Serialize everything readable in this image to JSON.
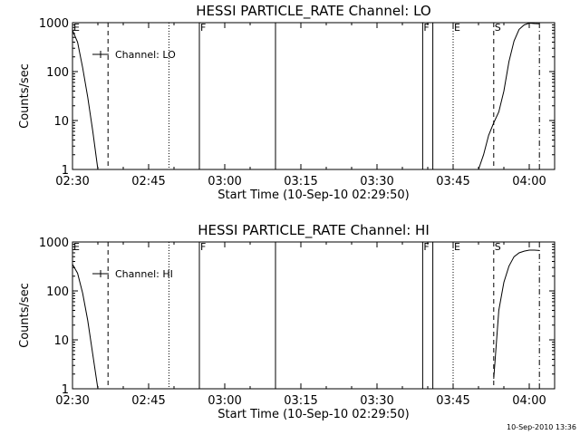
{
  "chart_data": [
    {
      "type": "line",
      "title": "HESSI PARTICLE_RATE Channel: LO",
      "xlabel": "Start Time (10-Sep-10 02:29:50)",
      "ylabel": "Counts/sec",
      "y_scale": "log",
      "ylim": [
        1,
        1000
      ],
      "xlim": [
        "02:30",
        "04:05"
      ],
      "yticks": [
        1,
        10,
        100,
        1000
      ],
      "ytick_labels": [
        "1",
        "10",
        "100",
        "1000"
      ],
      "xticks": [
        "02:30",
        "02:45",
        "03:00",
        "03:15",
        "03:30",
        "03:45",
        "04:00"
      ],
      "grid": false,
      "legend": {
        "label": "Channel: LO",
        "placement": "top-left"
      },
      "series": [
        {
          "name": "Channel: LO",
          "segments": [
            [
              [
                "02:30",
                700
              ],
              [
                "02:31",
                400
              ],
              [
                "02:32",
                120
              ],
              [
                "02:33",
                30
              ],
              [
                "02:34",
                6
              ],
              [
                "02:35",
                1
              ]
            ],
            [
              [
                "03:50",
                1
              ],
              [
                "03:51",
                2
              ],
              [
                "03:52",
                5
              ],
              [
                "03:53",
                9
              ],
              [
                "03:54",
                15
              ],
              [
                "03:55",
                40
              ],
              [
                "03:56",
                160
              ],
              [
                "03:57",
                420
              ],
              [
                "03:58",
                730
              ],
              [
                "03:59",
                900
              ],
              [
                "04:00",
                980
              ],
              [
                "04:01",
                960
              ],
              [
                "04:02",
                950
              ]
            ]
          ]
        }
      ],
      "markers": [
        {
          "label": "E",
          "time": "02:30",
          "style": "solid"
        },
        {
          "label": "",
          "time": "02:37",
          "style": "dashed"
        },
        {
          "label": "",
          "time": "02:49",
          "style": "dotted"
        },
        {
          "label": "F",
          "time": "02:55",
          "style": "solid"
        },
        {
          "label": "",
          "time": "03:10",
          "style": "solid"
        },
        {
          "label": "F",
          "time": "03:39",
          "style": "solid"
        },
        {
          "label": "",
          "time": "03:41",
          "style": "solid"
        },
        {
          "label": "E",
          "time": "03:45",
          "style": "dotted"
        },
        {
          "label": "S",
          "time": "03:53",
          "style": "dashed"
        },
        {
          "label": "",
          "time": "04:02",
          "style": "dashdot"
        }
      ]
    },
    {
      "type": "line",
      "title": "HESSI PARTICLE_RATE Channel: HI",
      "xlabel": "Start Time (10-Sep-10 02:29:50)",
      "ylabel": "Counts/sec",
      "y_scale": "log",
      "ylim": [
        1,
        1000
      ],
      "xlim": [
        "02:30",
        "04:05"
      ],
      "yticks": [
        1,
        10,
        100,
        1000
      ],
      "ytick_labels": [
        "1",
        "10",
        "100",
        "1000"
      ],
      "xticks": [
        "02:30",
        "02:45",
        "03:00",
        "03:15",
        "03:30",
        "03:45",
        "04:00"
      ],
      "grid": false,
      "legend": {
        "label": "Channel: HI",
        "placement": "top-left"
      },
      "series": [
        {
          "name": "Channel: HI",
          "segments": [
            [
              [
                "02:30",
                350
              ],
              [
                "02:31",
                230
              ],
              [
                "02:32",
                90
              ],
              [
                "02:33",
                25
              ],
              [
                "02:34",
                5
              ],
              [
                "02:35",
                1
              ]
            ],
            [
              [
                "03:53",
                1.6
              ],
              [
                "03:54",
                40
              ],
              [
                "03:55",
                150
              ],
              [
                "03:56",
                320
              ],
              [
                "03:57",
                500
              ],
              [
                "03:58",
                600
              ],
              [
                "03:59",
                650
              ],
              [
                "04:00",
                680
              ],
              [
                "04:01",
                680
              ],
              [
                "04:02",
                670
              ]
            ]
          ]
        }
      ],
      "markers": [
        {
          "label": "E",
          "time": "02:30",
          "style": "solid"
        },
        {
          "label": "",
          "time": "02:37",
          "style": "dashed"
        },
        {
          "label": "",
          "time": "02:49",
          "style": "dotted"
        },
        {
          "label": "F",
          "time": "02:55",
          "style": "solid"
        },
        {
          "label": "",
          "time": "03:10",
          "style": "solid"
        },
        {
          "label": "F",
          "time": "03:39",
          "style": "solid"
        },
        {
          "label": "",
          "time": "03:41",
          "style": "solid"
        },
        {
          "label": "E",
          "time": "03:45",
          "style": "dotted"
        },
        {
          "label": "S",
          "time": "03:53",
          "style": "dashed"
        },
        {
          "label": "",
          "time": "04:02",
          "style": "dashdot"
        }
      ]
    }
  ],
  "footer": {
    "timestamp": "10-Sep-2010 13:36"
  },
  "colors": {
    "background": "#ffffff",
    "foreground": "#000000"
  }
}
